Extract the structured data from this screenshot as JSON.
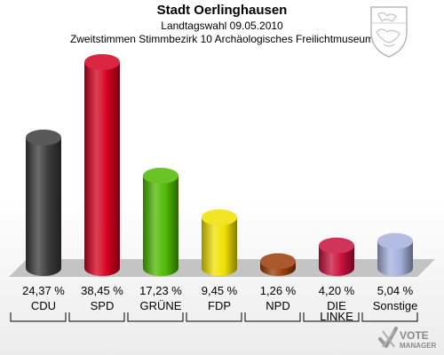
{
  "header": {
    "title": "Stadt Oerlinghausen",
    "subtitle": "Landtagswahl 09.05.2010",
    "description": "Zweitstimmen Stimmbezirk 10 Archäologisches Freilichtmuseum"
  },
  "logo": {
    "line1": "VOTE",
    "line2": "MANAGER"
  },
  "chart_data": {
    "type": "bar",
    "title": "Stadt Oerlinghausen",
    "categories": [
      "CDU",
      "SPD",
      "GRÜNE",
      "FDP",
      "NPD",
      "DIE LINKE",
      "Sonstige"
    ],
    "category_lines": [
      [
        "CDU"
      ],
      [
        "SPD"
      ],
      [
        "GRÜNE"
      ],
      [
        "FDP"
      ],
      [
        "NPD"
      ],
      [
        "DIE",
        "LINKE"
      ],
      [
        "Sonstige"
      ]
    ],
    "values": [
      24.37,
      38.45,
      17.23,
      9.45,
      1.26,
      4.2,
      5.04
    ],
    "value_labels": [
      "24,37 %",
      "38,45 %",
      "17,23 %",
      "9,45 %",
      "1,26 %",
      "4,20 %",
      "5,04 %"
    ],
    "colors": [
      "#3a3a3a",
      "#d40020",
      "#4db800",
      "#f0e000",
      "#9a3c08",
      "#c8103c",
      "#a6b0de"
    ],
    "unit": "%",
    "ylim": [
      0,
      40
    ],
    "legend": "none",
    "grid": false
  }
}
